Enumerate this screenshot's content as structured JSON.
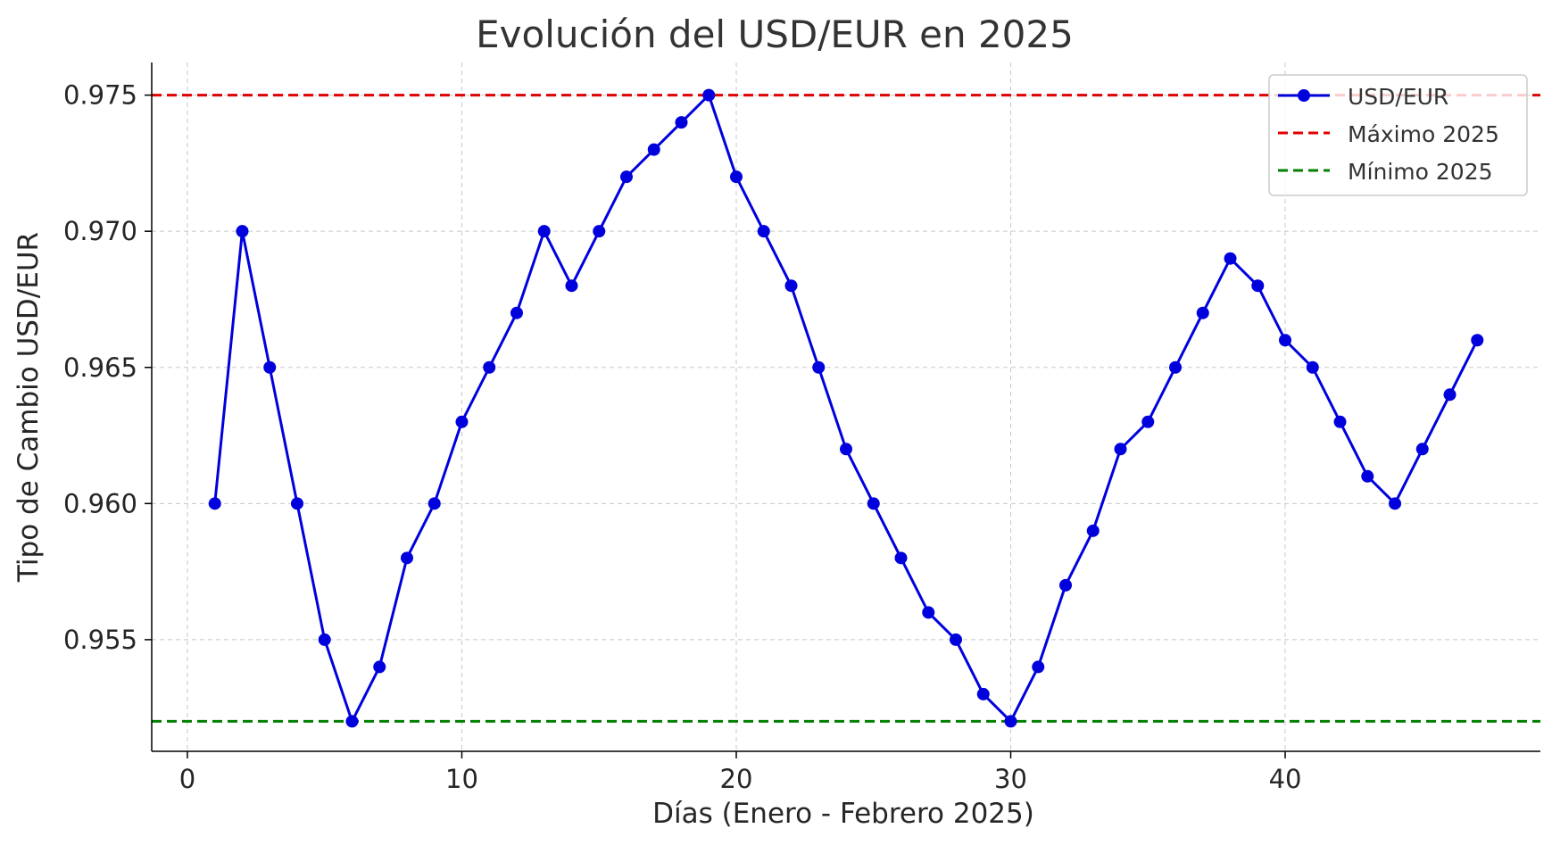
{
  "chart_data": {
    "type": "line",
    "title": "Evolución del USD/EUR en 2025",
    "xlabel": "Días (Enero - Febrero 2025)",
    "ylabel": "Tipo de Cambio USD/EUR",
    "xlim": [
      -1.3,
      49.3
    ],
    "ylim": [
      0.9509,
      0.9762
    ],
    "xticks": [
      0,
      10,
      20,
      30,
      40
    ],
    "yticks": [
      0.955,
      0.96,
      0.965,
      0.97,
      0.975
    ],
    "ytick_labels": [
      "0.955",
      "0.960",
      "0.965",
      "0.970",
      "0.975"
    ],
    "grid": true,
    "legend_position": "top-right",
    "series": [
      {
        "name": "USD/EUR",
        "color": "#0000dd",
        "marker": "circle",
        "x": [
          1,
          2,
          3,
          4,
          5,
          6,
          7,
          8,
          9,
          10,
          11,
          12,
          13,
          14,
          15,
          16,
          17,
          18,
          19,
          20,
          21,
          22,
          23,
          24,
          25,
          26,
          27,
          28,
          29,
          30,
          31,
          32,
          33,
          34,
          35,
          36,
          37,
          38,
          39,
          40,
          41,
          42,
          43,
          44,
          45,
          46,
          47
        ],
        "values": [
          0.96,
          0.97,
          0.965,
          0.96,
          0.955,
          0.952,
          0.954,
          0.958,
          0.96,
          0.963,
          0.965,
          0.967,
          0.97,
          0.968,
          0.97,
          0.972,
          0.973,
          0.974,
          0.975,
          0.972,
          0.97,
          0.968,
          0.965,
          0.962,
          0.96,
          0.958,
          0.956,
          0.955,
          0.953,
          0.952,
          0.954,
          0.957,
          0.959,
          0.962,
          0.963,
          0.965,
          0.967,
          0.969,
          0.968,
          0.966,
          0.965,
          0.963,
          0.961,
          0.96,
          0.962,
          0.964,
          0.966
        ]
      }
    ],
    "reference_lines": [
      {
        "name": "Máximo 2025",
        "value": 0.975,
        "color": "#e00000",
        "style": "dashed"
      },
      {
        "name": "Mínimo 2025",
        "value": 0.952,
        "color": "#008000",
        "style": "dashed"
      }
    ]
  }
}
